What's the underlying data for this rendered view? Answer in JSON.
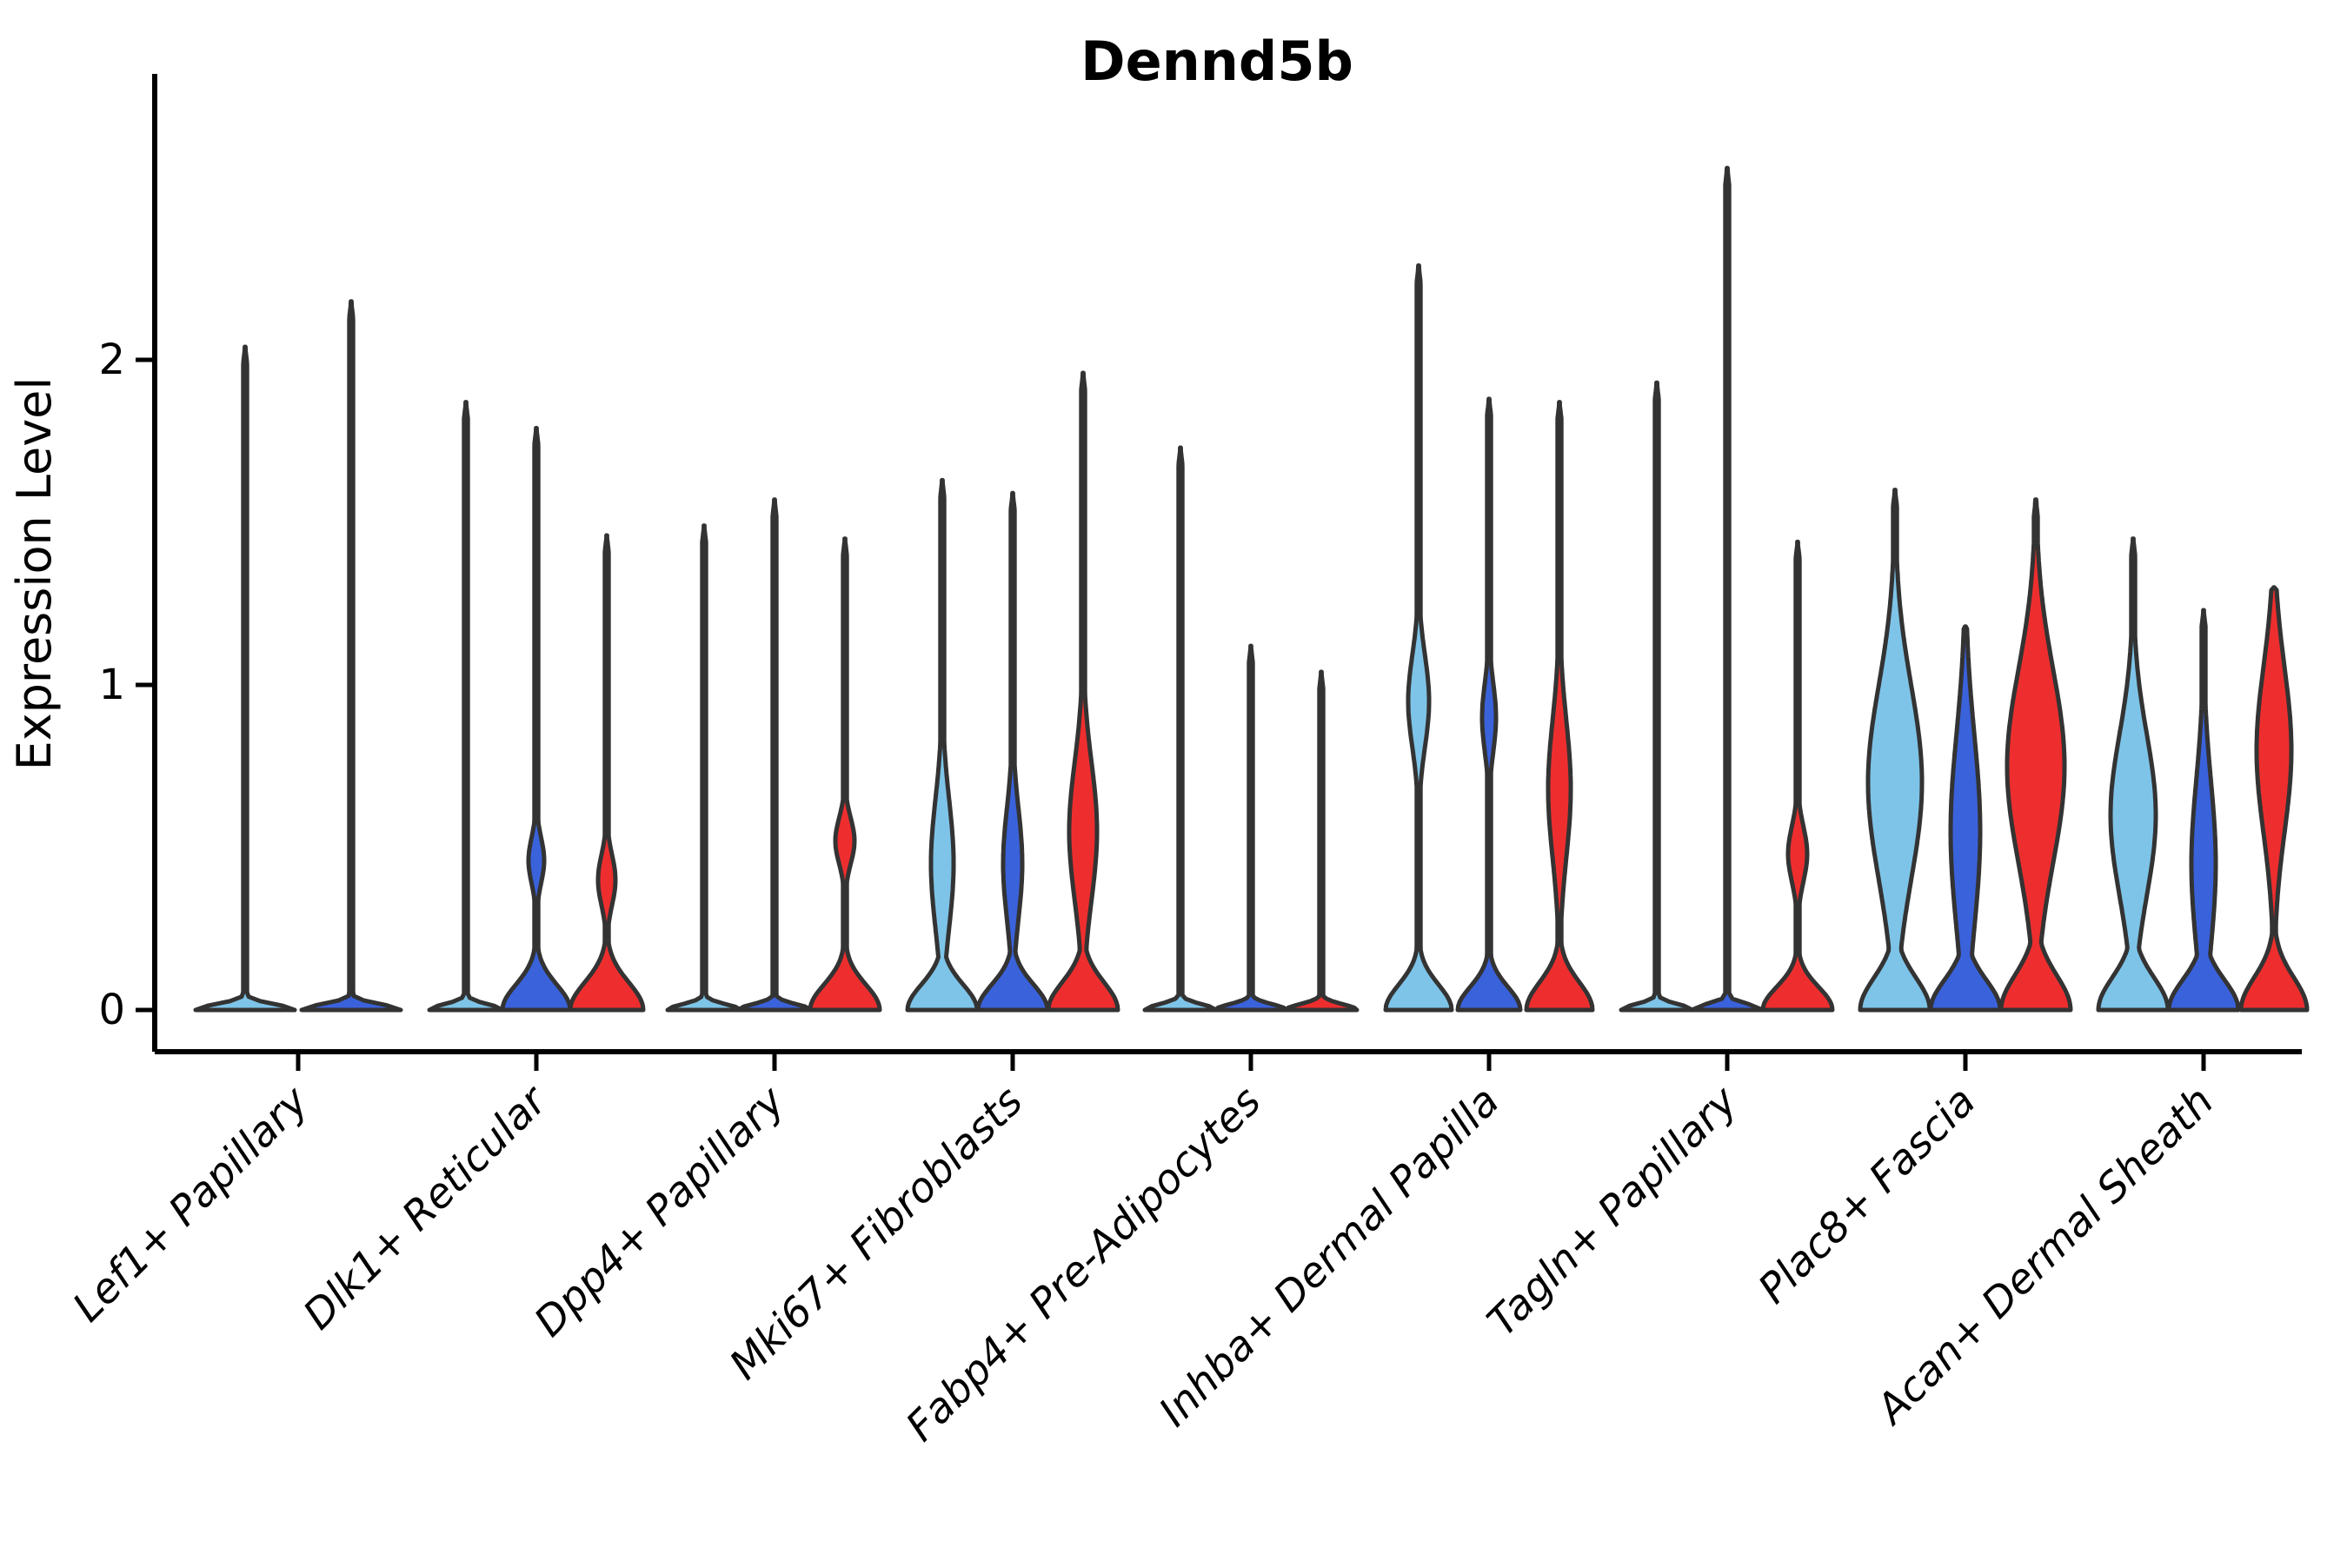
{
  "chart_data": {
    "type": "violin",
    "title": "Dennd5b",
    "ylabel": "Expression Level",
    "xlabel": "",
    "yticks": [
      0,
      1,
      2
    ],
    "ylim": [
      -0.05,
      2.9
    ],
    "grid": false,
    "legend_position": "none",
    "colors": {
      "light_blue": "#7EC4E8",
      "dark_blue": "#3A62DB",
      "red": "#EE2E2E",
      "outline": "#333333",
      "axis": "#000000"
    },
    "categories": [
      {
        "label": "Lef1+ Papillary",
        "violins": [
          {
            "color": "light_blue",
            "max_expression": 2.04,
            "bell_hw": 57,
            "bell_sigma": 0.025,
            "bulges": []
          },
          {
            "color": "dark_blue",
            "max_expression": 2.18,
            "bell_hw": 57,
            "bell_sigma": 0.025,
            "bulges": []
          }
        ]
      },
      {
        "label": "Dlk1+ Reticular",
        "violins": [
          {
            "color": "light_blue",
            "max_expression": 1.87,
            "bell_hw": 42,
            "bell_sigma": 0.025,
            "bulges": []
          },
          {
            "color": "dark_blue",
            "max_expression": 1.79,
            "bell_hw": 39,
            "bell_sigma": 0.11,
            "bulges": [
              {
                "v": 0.46,
                "hw": 9,
                "sigma": 0.1
              }
            ]
          },
          {
            "color": "red",
            "max_expression": 1.46,
            "bell_hw": 42,
            "bell_sigma": 0.12,
            "bulges": [
              {
                "v": 0.4,
                "hw": 10,
                "sigma": 0.11
              }
            ]
          }
        ]
      },
      {
        "label": "Dpp4+ Papillary",
        "violins": [
          {
            "color": "light_blue",
            "max_expression": 1.49,
            "bell_hw": 42,
            "bell_sigma": 0.025,
            "bulges": []
          },
          {
            "color": "dark_blue",
            "max_expression": 1.57,
            "bell_hw": 42,
            "bell_sigma": 0.025,
            "bulges": []
          },
          {
            "color": "red",
            "max_expression": 1.45,
            "bell_hw": 40,
            "bell_sigma": 0.11,
            "bulges": [
              {
                "v": 0.52,
                "hw": 11,
                "sigma": 0.1
              }
            ]
          }
        ]
      },
      {
        "label": "Mki67+ Fibroblasts",
        "violins": [
          {
            "color": "light_blue",
            "max_expression": 1.63,
            "bell_hw": 40,
            "bell_sigma": 0.11,
            "bulges": [
              {
                "v": 0.45,
                "hw": 13,
                "sigma": 0.28
              }
            ]
          },
          {
            "color": "dark_blue",
            "max_expression": 1.59,
            "bell_hw": 40,
            "bell_sigma": 0.11,
            "bulges": [
              {
                "v": 0.45,
                "hw": 11,
                "sigma": 0.24
              }
            ]
          },
          {
            "color": "red",
            "max_expression": 1.96,
            "bell_hw": 40,
            "bell_sigma": 0.12,
            "bulges": [
              {
                "v": 0.55,
                "hw": 16,
                "sigma": 0.3
              }
            ]
          }
        ]
      },
      {
        "label": "Fabp4+ Pre-Adipocytes",
        "violins": [
          {
            "color": "light_blue",
            "max_expression": 1.73,
            "bell_hw": 41,
            "bell_sigma": 0.025,
            "bulges": []
          },
          {
            "color": "dark_blue",
            "max_expression": 1.12,
            "bell_hw": 41,
            "bell_sigma": 0.025,
            "bulges": []
          },
          {
            "color": "red",
            "max_expression": 1.04,
            "bell_hw": 41,
            "bell_sigma": 0.025,
            "bulges": []
          }
        ]
      },
      {
        "label": "Inhba+ Dermal Papilla",
        "violins": [
          {
            "color": "light_blue",
            "max_expression": 2.29,
            "bell_hw": 38,
            "bell_sigma": 0.11,
            "bulges": [
              {
                "v": 0.95,
                "hw": 12,
                "sigma": 0.2
              }
            ]
          },
          {
            "color": "dark_blue",
            "max_expression": 1.88,
            "bell_hw": 36,
            "bell_sigma": 0.1,
            "bulges": [
              {
                "v": 0.9,
                "hw": 8,
                "sigma": 0.15
              }
            ]
          },
          {
            "color": "red",
            "max_expression": 1.87,
            "bell_hw": 38,
            "bell_sigma": 0.12,
            "bulges": [
              {
                "v": 0.68,
                "hw": 13,
                "sigma": 0.3
              }
            ]
          }
        ]
      },
      {
        "label": "Tagln+ Papillary",
        "violins": [
          {
            "color": "light_blue",
            "max_expression": 1.93,
            "bell_hw": 41,
            "bell_sigma": 0.025,
            "bulges": []
          },
          {
            "color": "dark_blue",
            "max_expression": 2.59,
            "bell_hw": 41,
            "bell_sigma": 0.025,
            "bulges": []
          },
          {
            "color": "red",
            "max_expression": 1.44,
            "bell_hw": 40,
            "bell_sigma": 0.1,
            "bulges": [
              {
                "v": 0.48,
                "hw": 11,
                "sigma": 0.12
              }
            ]
          }
        ]
      },
      {
        "label": "Plac8+ Fascia",
        "violins": [
          {
            "color": "light_blue",
            "max_expression": 1.6,
            "bell_hw": 40,
            "bell_sigma": 0.14,
            "bulges": [
              {
                "v": 0.7,
                "hw": 31,
                "sigma": 0.42
              }
            ]
          },
          {
            "color": "dark_blue",
            "max_expression": 1.18,
            "bell_hw": 40,
            "bell_sigma": 0.13,
            "bulges": [
              {
                "v": 0.55,
                "hw": 17,
                "sigma": 0.42
              }
            ]
          },
          {
            "color": "red",
            "max_expression": 1.57,
            "bell_hw": 40,
            "bell_sigma": 0.15,
            "bulges": [
              {
                "v": 0.75,
                "hw": 33,
                "sigma": 0.42
              }
            ]
          }
        ]
      },
      {
        "label": "Acan+ Dermal Sheath",
        "violins": [
          {
            "color": "light_blue",
            "max_expression": 1.45,
            "bell_hw": 40,
            "bell_sigma": 0.14,
            "bulges": [
              {
                "v": 0.6,
                "hw": 26,
                "sigma": 0.35
              }
            ]
          },
          {
            "color": "dark_blue",
            "max_expression": 1.23,
            "bell_hw": 40,
            "bell_sigma": 0.13,
            "bulges": [
              {
                "v": 0.45,
                "hw": 14,
                "sigma": 0.36
              }
            ]
          },
          {
            "color": "red",
            "max_expression": 1.3,
            "bell_hw": 38,
            "bell_sigma": 0.14,
            "bulges": [
              {
                "v": 0.8,
                "hw": 20,
                "sigma": 0.36
              }
            ]
          }
        ]
      }
    ]
  }
}
